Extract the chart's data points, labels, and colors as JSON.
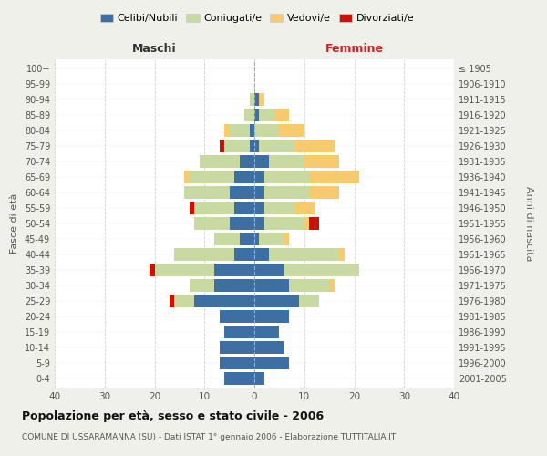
{
  "age_groups": [
    "0-4",
    "5-9",
    "10-14",
    "15-19",
    "20-24",
    "25-29",
    "30-34",
    "35-39",
    "40-44",
    "45-49",
    "50-54",
    "55-59",
    "60-64",
    "65-69",
    "70-74",
    "75-79",
    "80-84",
    "85-89",
    "90-94",
    "95-99",
    "100+"
  ],
  "birth_years": [
    "2001-2005",
    "1996-2000",
    "1991-1995",
    "1986-1990",
    "1981-1985",
    "1976-1980",
    "1971-1975",
    "1966-1970",
    "1961-1965",
    "1956-1960",
    "1951-1955",
    "1946-1950",
    "1941-1945",
    "1936-1940",
    "1931-1935",
    "1926-1930",
    "1921-1925",
    "1916-1920",
    "1911-1915",
    "1906-1910",
    "≤ 1905"
  ],
  "males": {
    "celibi": [
      6,
      7,
      7,
      6,
      7,
      12,
      8,
      8,
      4,
      3,
      5,
      4,
      5,
      4,
      3,
      1,
      1,
      0,
      0,
      0,
      0
    ],
    "coniugati": [
      0,
      0,
      0,
      0,
      0,
      4,
      5,
      12,
      12,
      5,
      7,
      8,
      9,
      9,
      8,
      5,
      4,
      2,
      1,
      0,
      0
    ],
    "vedovi": [
      0,
      0,
      0,
      0,
      0,
      0,
      0,
      0,
      0,
      0,
      0,
      0,
      0,
      1,
      0,
      0,
      1,
      0,
      0,
      0,
      0
    ],
    "divorziati": [
      0,
      0,
      0,
      0,
      0,
      1,
      0,
      1,
      0,
      0,
      0,
      1,
      0,
      0,
      0,
      1,
      0,
      0,
      0,
      0,
      0
    ]
  },
  "females": {
    "nubili": [
      2,
      7,
      6,
      5,
      7,
      9,
      7,
      6,
      3,
      1,
      2,
      2,
      2,
      2,
      3,
      1,
      0,
      1,
      1,
      0,
      0
    ],
    "coniugate": [
      0,
      0,
      0,
      0,
      0,
      4,
      8,
      15,
      14,
      5,
      8,
      6,
      9,
      9,
      7,
      7,
      5,
      3,
      0,
      0,
      0
    ],
    "vedove": [
      0,
      0,
      0,
      0,
      0,
      0,
      1,
      0,
      1,
      1,
      1,
      4,
      6,
      10,
      7,
      8,
      5,
      3,
      1,
      0,
      0
    ],
    "divorziate": [
      0,
      0,
      0,
      0,
      0,
      0,
      0,
      0,
      0,
      0,
      2,
      0,
      0,
      0,
      0,
      0,
      0,
      0,
      0,
      0,
      0
    ]
  },
  "colors": {
    "celibi": "#3e6fa3",
    "coniugati": "#c8d9a2",
    "vedovi": "#f7ca6e",
    "divorziati": "#cc1100"
  },
  "xlim": 40,
  "title": "Popolazione per età, sesso e stato civile - 2006",
  "subtitle": "COMUNE DI USSARAMANNA (SU) - Dati ISTAT 1° gennaio 2006 - Elaborazione TUTTITALIA.IT",
  "ylabel_left": "Fasce di età",
  "ylabel_right": "Anni di nascita",
  "legend_labels": [
    "Celibi/Nubili",
    "Coniugati/e",
    "Vedovi/e",
    "Divorziati/e"
  ],
  "maschi_label": "Maschi",
  "femmine_label": "Femmine",
  "bg_color": "#f0f0eb",
  "plot_bg": "#ffffff",
  "xticks": [
    -40,
    -30,
    -20,
    -10,
    0,
    10,
    20,
    30,
    40
  ],
  "xtick_labels": [
    "40",
    "30",
    "20",
    "10",
    "0",
    "10",
    "20",
    "30",
    "40"
  ]
}
